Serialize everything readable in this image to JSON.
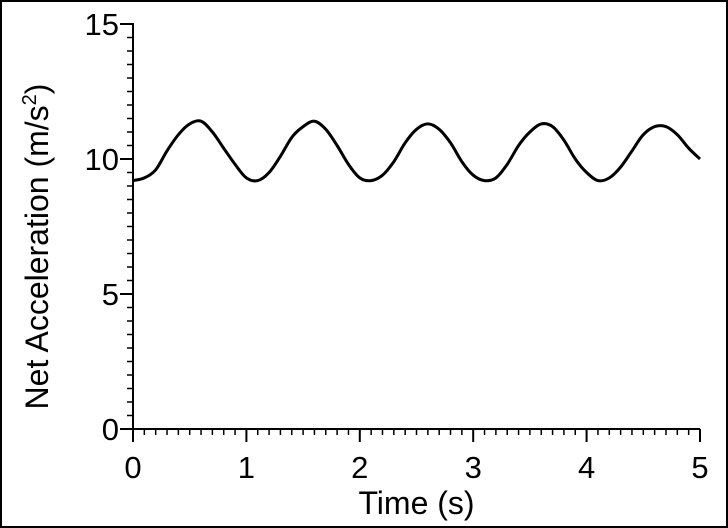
{
  "chart_data": {
    "type": "line",
    "title": "",
    "xlabel": "Time (s)",
    "ylabel": {
      "main": "Net Acceleration (m/s",
      "superscript": "2",
      "close": ")"
    },
    "xlim": [
      0,
      5
    ],
    "ylim": [
      0,
      15
    ],
    "x_ticks": [
      "0",
      "1",
      "2",
      "3",
      "4",
      "5"
    ],
    "y_ticks": [
      "0",
      "5",
      "10",
      "15"
    ],
    "x_minor_step": 0.1,
    "y_minor_step": 0.5,
    "grid": false,
    "line_color": "#000000",
    "series": [
      {
        "x": [
          0,
          0.1,
          0.2,
          0.3,
          0.4,
          0.5,
          0.6,
          0.7,
          0.8,
          0.9,
          1.0,
          1.1,
          1.2,
          1.3,
          1.4,
          1.5,
          1.6,
          1.7,
          1.8,
          1.9,
          2.0,
          2.1,
          2.2,
          2.3,
          2.4,
          2.5,
          2.6,
          2.7,
          2.8,
          2.9,
          3.0,
          3.1,
          3.2,
          3.3,
          3.4,
          3.5,
          3.6,
          3.7,
          3.8,
          3.9,
          4.0,
          4.1,
          4.2,
          4.3,
          4.4,
          4.5,
          4.6,
          4.7,
          4.8,
          4.9,
          5.0
        ],
        "y": [
          9.2,
          9.3,
          9.6,
          10.3,
          10.9,
          11.3,
          11.4,
          11.0,
          10.4,
          9.8,
          9.3,
          9.2,
          9.5,
          10.1,
          10.8,
          11.2,
          11.4,
          11.1,
          10.5,
          9.8,
          9.3,
          9.2,
          9.4,
          9.9,
          10.6,
          11.1,
          11.3,
          11.1,
          10.6,
          9.9,
          9.4,
          9.2,
          9.3,
          9.8,
          10.5,
          11.0,
          11.3,
          11.2,
          10.7,
          10.0,
          9.5,
          9.2,
          9.3,
          9.7,
          10.3,
          10.9,
          11.2,
          11.2,
          10.9,
          10.4,
          10.0
        ]
      }
    ]
  }
}
